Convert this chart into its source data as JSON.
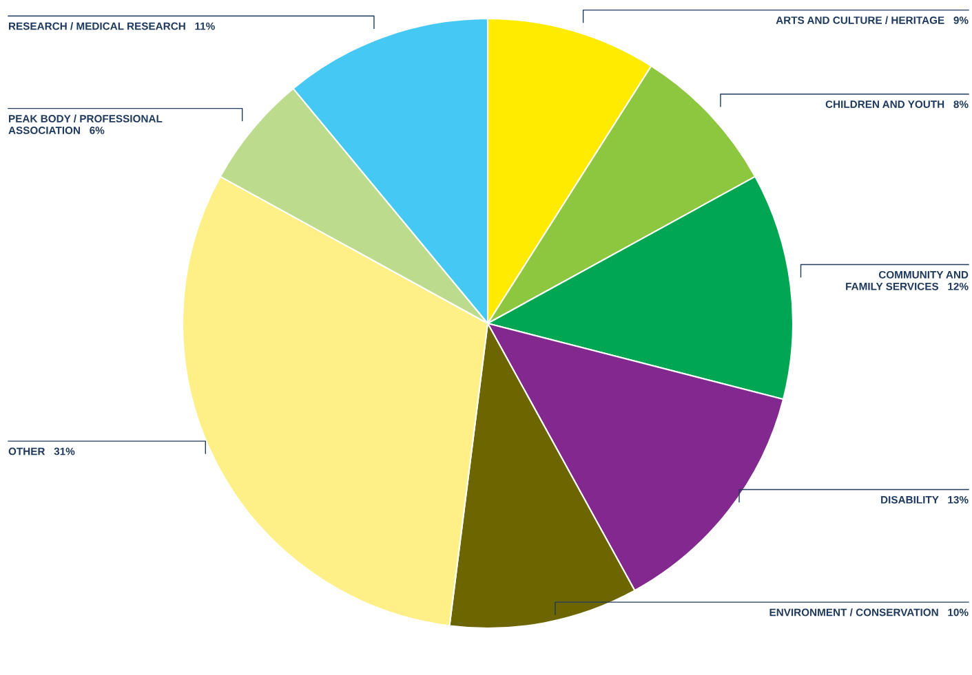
{
  "chart_data": {
    "type": "pie",
    "categories": [
      "ARTS AND CULTURE / HERITAGE",
      "CHILDREN AND YOUTH",
      "COMMUNITY AND\nFAMILY SERVICES",
      "DISABILITY",
      "ENVIRONMENT / CONSERVATION",
      "OTHER",
      "PEAK BODY / PROFESSIONAL\nASSOCIATION",
      "RESEARCH / MEDICAL RESEARCH"
    ],
    "values": [
      9,
      8,
      12,
      13,
      10,
      31,
      6,
      11
    ],
    "value_labels": [
      "9%",
      "8%",
      "12%",
      "13%",
      "10%",
      "31%",
      "6%",
      "11%"
    ],
    "colors": [
      "#ffeb00",
      "#8dc63f",
      "#00a651",
      "#83288f",
      "#6d6500",
      "#fef087",
      "#bcdb8d",
      "#46c8f5"
    ]
  }
}
